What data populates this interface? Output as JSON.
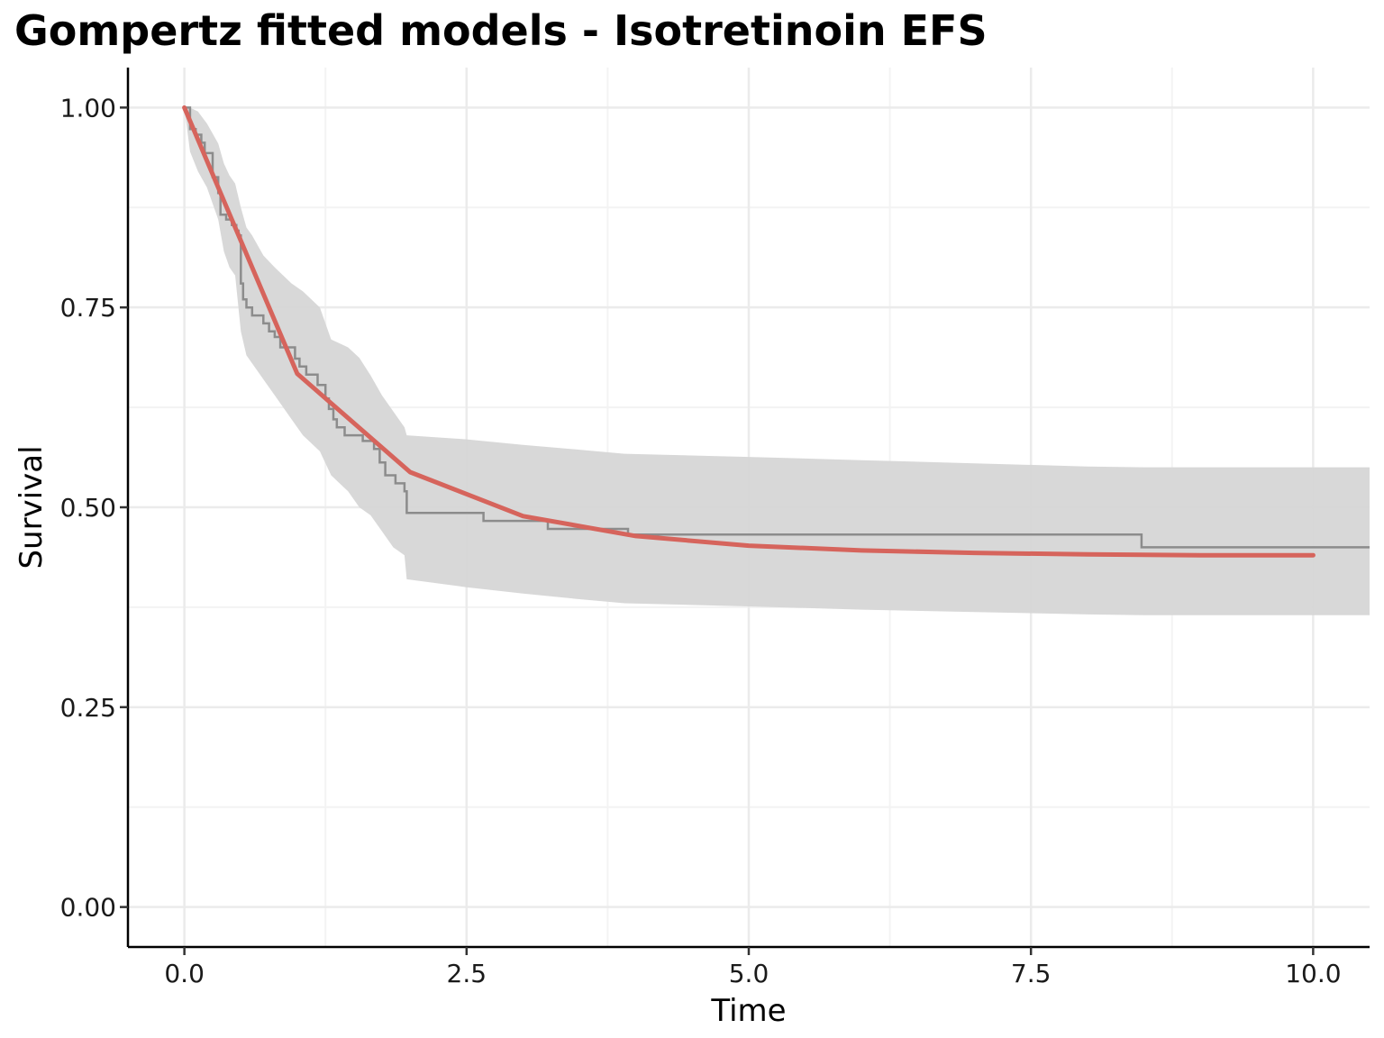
{
  "chart_data": {
    "type": "line",
    "title": "Gompertz fitted models - Isotretinoin EFS",
    "xlabel": "Time",
    "ylabel": "Survival",
    "xlim": [
      -0.5,
      10.5
    ],
    "ylim": [
      -0.05,
      1.05
    ],
    "x_ticks": [
      0.0,
      2.5,
      5.0,
      7.5,
      10.0
    ],
    "x_tick_labels": [
      "0.0",
      "2.5",
      "5.0",
      "7.5",
      "10.0"
    ],
    "y_ticks": [
      0.0,
      0.25,
      0.5,
      0.75,
      1.0
    ],
    "y_tick_labels": [
      "0.00",
      "0.25",
      "0.50",
      "0.75",
      "1.00"
    ],
    "grid": true,
    "legend": "none",
    "colors": {
      "fitted": "#d6645c",
      "km": "#8c8c8c",
      "ci": "#d6d6d6",
      "grid_major": "#ebebeb",
      "grid_minor": "#f3f3f3"
    },
    "series": [
      {
        "kind": "fitted",
        "x": [
          0,
          1,
          2,
          3,
          4,
          5,
          6,
          7,
          8,
          9,
          10
        ],
        "y": [
          1.0,
          0.667,
          0.544,
          0.489,
          0.464,
          0.452,
          0.446,
          0.443,
          0.441,
          0.44,
          0.44
        ]
      },
      {
        "kind": "kaplan-meier",
        "x": [
          0,
          0.05,
          0.1,
          0.15,
          0.18,
          0.25,
          0.3,
          0.32,
          0.37,
          0.42,
          0.46,
          0.48,
          0.5,
          0.52,
          0.55,
          0.6,
          0.7,
          0.75,
          0.8,
          0.85,
          0.93,
          0.98,
          1.02,
          1.08,
          1.18,
          1.25,
          1.28,
          1.32,
          1.35,
          1.42,
          1.5,
          1.58,
          1.68,
          1.73,
          1.78,
          1.87,
          1.95,
          1.97,
          2.65,
          3.22,
          3.93,
          8.48,
          10.5
        ],
        "y": [
          1.0,
          0.973,
          0.966,
          0.956,
          0.943,
          0.913,
          0.893,
          0.866,
          0.86,
          0.853,
          0.846,
          0.84,
          0.78,
          0.76,
          0.75,
          0.74,
          0.73,
          0.72,
          0.713,
          0.7,
          0.7,
          0.686,
          0.676,
          0.666,
          0.653,
          0.636,
          0.623,
          0.61,
          0.6,
          0.59,
          0.59,
          0.583,
          0.573,
          0.556,
          0.54,
          0.53,
          0.52,
          0.493,
          0.483,
          0.473,
          0.466,
          0.45,
          0.45
        ]
      }
    ],
    "confidence_band": {
      "x": [
        0,
        0.05,
        0.12,
        0.2,
        0.3,
        0.35,
        0.4,
        0.45,
        0.5,
        0.55,
        0.6,
        0.7,
        0.8,
        0.95,
        1.05,
        1.2,
        1.3,
        1.45,
        1.55,
        1.65,
        1.75,
        1.85,
        1.95,
        1.97,
        2.5,
        3.0,
        3.5,
        3.9,
        5.0,
        6.0,
        7.0,
        8.0,
        8.5,
        9.0,
        10.0,
        10.5
      ],
      "lower": [
        1.0,
        0.945,
        0.92,
        0.9,
        0.86,
        0.82,
        0.8,
        0.79,
        0.72,
        0.69,
        0.68,
        0.66,
        0.64,
        0.61,
        0.59,
        0.57,
        0.54,
        0.52,
        0.5,
        0.49,
        0.47,
        0.45,
        0.44,
        0.41,
        0.4,
        0.392,
        0.385,
        0.38,
        0.376,
        0.372,
        0.369,
        0.366,
        0.365,
        0.365,
        0.365,
        0.365
      ],
      "upper": [
        1.0,
        1.0,
        0.995,
        0.98,
        0.955,
        0.93,
        0.915,
        0.905,
        0.875,
        0.85,
        0.84,
        0.815,
        0.8,
        0.78,
        0.77,
        0.75,
        0.71,
        0.7,
        0.687,
        0.665,
        0.64,
        0.62,
        0.6,
        0.59,
        0.585,
        0.578,
        0.572,
        0.567,
        0.563,
        0.559,
        0.555,
        0.551,
        0.55,
        0.55,
        0.55,
        0.55
      ]
    }
  }
}
